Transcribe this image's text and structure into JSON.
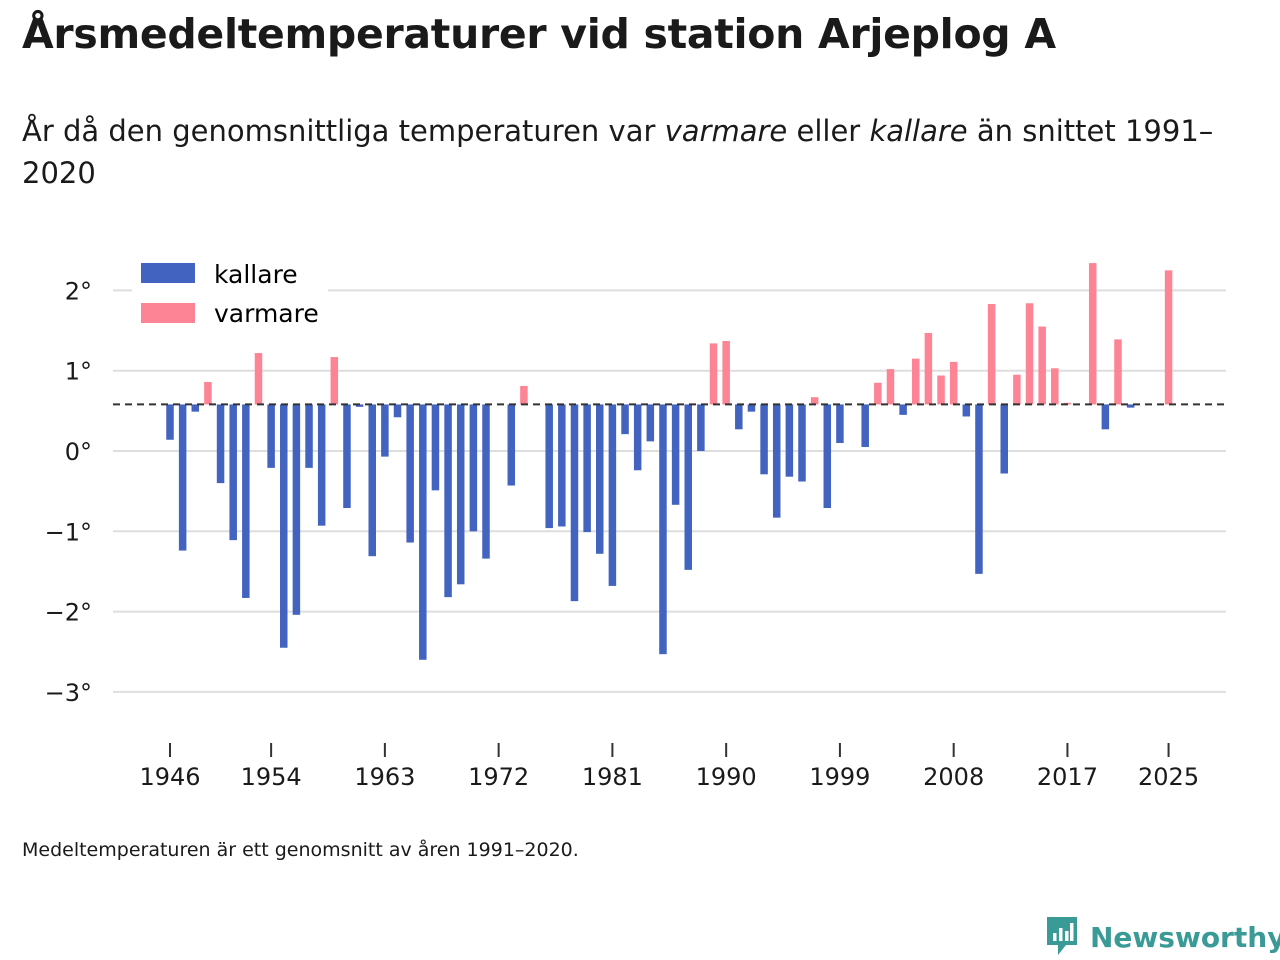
{
  "chart_data": {
    "type": "bar",
    "title": "Årsmedeltemperaturer vid station Arjeplog A",
    "subtitle": {
      "part1": "År då den genomsnittliga temperaturen var ",
      "warm_word": "varmare",
      "part2": " eller ",
      "cold_word": "kallare",
      "part3": " än snittet 1991–2020"
    },
    "baseline": 0.58,
    "ylim": [
      -3.6,
      2.55
    ],
    "yticks": [
      2,
      1,
      0,
      -1,
      -2,
      -3
    ],
    "ytick_labels": [
      "2°",
      "1°",
      "0°",
      "−1°",
      "−2°",
      "−3°"
    ],
    "xlim": [
      1944.2,
      2029.2
    ],
    "xticks": [
      1946,
      1954,
      1963,
      1972,
      1981,
      1990,
      1999,
      2008,
      2017,
      2025
    ],
    "xtick_labels": [
      "1946",
      "1954",
      "1963",
      "1972",
      "1981",
      "1990",
      "1999",
      "2008",
      "2017",
      "2025"
    ],
    "legend": [
      {
        "label": "kallare",
        "color": "#4263bf"
      },
      {
        "label": "varmare",
        "color": "#fd8494"
      }
    ],
    "years": [
      1946,
      1947,
      1948,
      1949,
      1950,
      1951,
      1952,
      1953,
      1954,
      1955,
      1956,
      1957,
      1958,
      1959,
      1960,
      1961,
      1962,
      1963,
      1964,
      1965,
      1966,
      1967,
      1968,
      1969,
      1970,
      1971,
      1972,
      1973,
      1974,
      1975,
      1976,
      1977,
      1978,
      1979,
      1980,
      1981,
      1982,
      1983,
      1984,
      1985,
      1986,
      1987,
      1988,
      1989,
      1990,
      1991,
      1992,
      1993,
      1994,
      1995,
      1996,
      1997,
      1998,
      1999,
      2000,
      2001,
      2002,
      2003,
      2004,
      2005,
      2006,
      2007,
      2008,
      2009,
      2010,
      2011,
      2012,
      2013,
      2014,
      2015,
      2016,
      2017,
      2018,
      2019,
      2020,
      2021,
      2022,
      2023,
      2024,
      2025
    ],
    "values": [
      0.14,
      -1.24,
      0.49,
      0.86,
      -0.4,
      -1.11,
      -1.83,
      1.22,
      -0.21,
      -2.45,
      -2.04,
      -0.21,
      -0.93,
      1.17,
      -0.71,
      0.55,
      -1.31,
      -0.07,
      0.42,
      -1.14,
      -2.6,
      -0.49,
      -1.82,
      -1.66,
      -1.0,
      -1.34,
      null,
      -0.43,
      0.81,
      null,
      -0.96,
      -0.94,
      -1.87,
      -1.01,
      -1.28,
      -1.68,
      0.21,
      -0.24,
      0.12,
      -2.53,
      -0.67,
      -1.48,
      0.0,
      1.34,
      1.37,
      0.27,
      0.49,
      -0.29,
      -0.83,
      -0.32,
      -0.38,
      0.67,
      -0.71,
      0.1,
      null,
      0.05,
      0.85,
      1.02,
      0.45,
      1.15,
      1.47,
      0.94,
      1.11,
      0.43,
      -1.53,
      1.83,
      -0.28,
      0.95,
      1.84,
      1.55,
      1.03,
      0.6,
      null,
      2.34,
      0.27,
      1.39,
      0.54,
      null,
      null,
      2.25
    ],
    "colors": {
      "cold": "#4263bf",
      "warm": "#fd8494",
      "grid": "#dedede",
      "baseline": "#333333",
      "text": "#1a1a1a"
    }
  },
  "footnote": "Medeltemperaturen är ett genomsnitt av åren 1991–2020.",
  "brand": {
    "name": "Newsworthy",
    "icon": "newsworthy-logo-icon",
    "color": "#3a9a96"
  }
}
